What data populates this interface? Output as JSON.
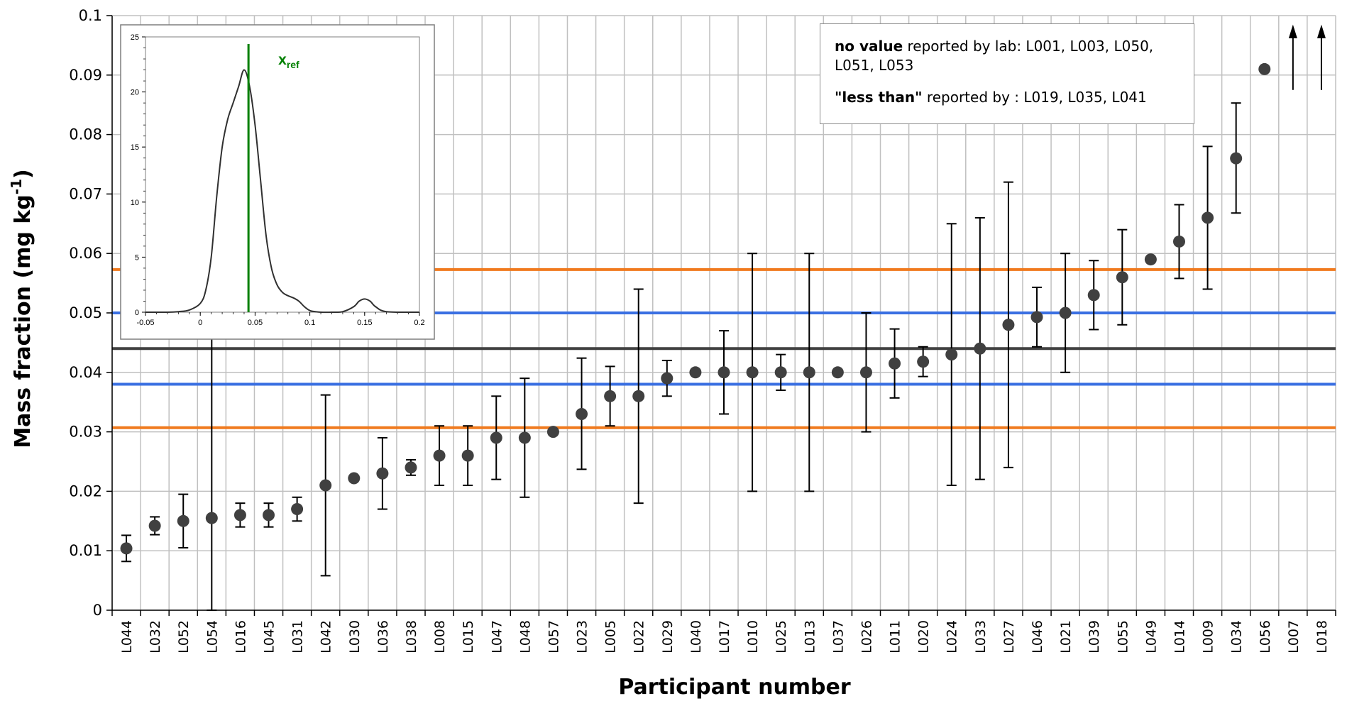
{
  "chart_data": {
    "type": "scatter",
    "title": "",
    "xlabel": "Participant number",
    "ylabel": "Mass fraction (mg kg",
    "ylabel_sup": "-1",
    "ylabel_end": ")",
    "ylim": [
      0,
      0.1
    ],
    "yticks": [
      "0",
      "0.01",
      "0.02",
      "0.03",
      "0.04",
      "0.05",
      "0.06",
      "0.07",
      "0.08",
      "0.09",
      "0.1"
    ],
    "grid": true,
    "participants": [
      "L044",
      "L032",
      "L052",
      "L054",
      "L016",
      "L045",
      "L031",
      "L042",
      "L030",
      "L036",
      "L038",
      "L008",
      "L015",
      "L047",
      "L048",
      "L057",
      "L023",
      "L005",
      "L022",
      "L029",
      "L040",
      "L017",
      "L010",
      "L025",
      "L013",
      "L037",
      "L026",
      "L011",
      "L020",
      "L024",
      "L033",
      "L027",
      "L046",
      "L021",
      "L039",
      "L055",
      "L049",
      "L014",
      "L009",
      "L034",
      "L056",
      "L007",
      "L018"
    ],
    "values": [
      0.0104,
      0.0142,
      0.015,
      0.0155,
      0.016,
      0.016,
      0.017,
      0.021,
      0.0222,
      0.023,
      0.024,
      0.026,
      0.026,
      0.029,
      0.029,
      0.03,
      0.033,
      0.036,
      0.036,
      0.039,
      0.04,
      0.04,
      0.04,
      0.04,
      0.04,
      0.04,
      0.04,
      0.0415,
      0.0418,
      0.043,
      0.044,
      0.048,
      0.0493,
      0.05,
      0.053,
      0.056,
      0.059,
      0.062,
      0.066,
      0.076,
      0.091,
      null,
      null
    ],
    "error_low": [
      0.0082,
      0.0127,
      0.0105,
      0.0,
      0.014,
      0.014,
      0.015,
      0.0058,
      null,
      0.017,
      0.0227,
      0.021,
      0.021,
      0.022,
      0.019,
      null,
      0.0237,
      0.031,
      0.018,
      0.036,
      null,
      0.033,
      0.02,
      0.037,
      0.02,
      null,
      0.03,
      0.0357,
      0.0393,
      0.021,
      0.022,
      0.024,
      0.0443,
      0.04,
      0.0472,
      0.048,
      null,
      0.0558,
      0.054,
      0.0668,
      null,
      null,
      null
    ],
    "error_high": [
      0.0126,
      0.0157,
      0.0195,
      0.046,
      0.018,
      0.018,
      0.019,
      0.0362,
      null,
      0.029,
      0.0253,
      0.031,
      0.031,
      0.036,
      0.039,
      null,
      0.0424,
      0.041,
      0.054,
      0.042,
      null,
      0.047,
      0.06,
      0.043,
      0.06,
      null,
      0.05,
      0.0473,
      0.0443,
      0.065,
      0.066,
      0.072,
      0.0543,
      0.06,
      0.0588,
      0.064,
      null,
      0.0682,
      0.078,
      0.0853,
      null,
      null,
      null
    ],
    "off_scale_high": [
      "L007",
      "L018"
    ],
    "reference_lines": [
      {
        "value": 0.044,
        "color": "#404040"
      },
      {
        "value": 0.05,
        "color": "#3a6fe2"
      },
      {
        "value": 0.038,
        "color": "#3a6fe2"
      },
      {
        "value": 0.0573,
        "color": "#f07a1e"
      },
      {
        "value": 0.0307,
        "color": "#f07a1e"
      }
    ],
    "marker_color": "#404040",
    "inset": {
      "type": "line",
      "xlim": [
        -0.05,
        0.2
      ],
      "ylim": [
        0,
        25
      ],
      "xticks": [
        "-0.05",
        "0",
        "0.05",
        "0.1",
        "0.15",
        "0.2"
      ],
      "yticks": [
        "0",
        "5",
        "10",
        "15",
        "20",
        "25"
      ],
      "x": [
        -0.05,
        -0.03,
        -0.02,
        -0.01,
        0,
        0.005,
        0.01,
        0.015,
        0.02,
        0.025,
        0.03,
        0.035,
        0.04,
        0.045,
        0.05,
        0.055,
        0.06,
        0.065,
        0.07,
        0.075,
        0.08,
        0.085,
        0.09,
        0.095,
        0.1,
        0.105,
        0.11,
        0.12,
        0.13,
        0.14,
        0.145,
        0.15,
        0.155,
        0.16,
        0.17,
        0.2
      ],
      "y": [
        0,
        0,
        0.05,
        0.2,
        0.8,
        2.0,
        5.0,
        10.5,
        15.0,
        17.5,
        19.0,
        20.5,
        22.0,
        20.5,
        17.0,
        12.0,
        7.0,
        4.0,
        2.5,
        1.8,
        1.5,
        1.3,
        1.0,
        0.5,
        0.15,
        0.05,
        0,
        0,
        0.05,
        0.5,
        1.0,
        1.2,
        1.0,
        0.5,
        0.05,
        0
      ],
      "line_color": "#303030",
      "xref": 0.044,
      "xref_color": "#008000",
      "xref_label": "x",
      "xref_sub": "ref"
    }
  },
  "legend": {
    "line1_bold": "no value",
    "line1_text": " reported by lab: L001, L003, L050, L051, L053",
    "line2_bold": "\"less than\"",
    "line2_text": " reported by : L019, L035, L041"
  }
}
